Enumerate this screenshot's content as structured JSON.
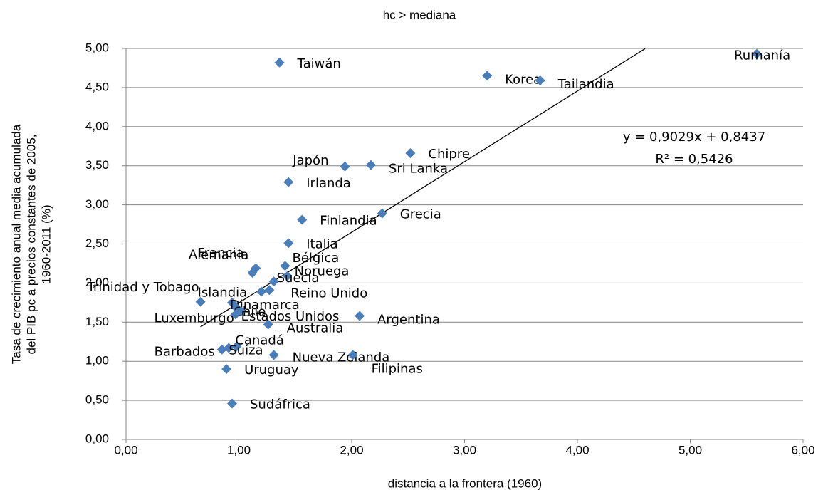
{
  "chart_data": {
    "type": "scatter",
    "title": "hc > mediana",
    "x_label": "distancia a la frontera (1960)",
    "y_label": [
      "Tasa de crecimiento anual media acumulada",
      "del PIB pc a precios constantes de 2005,",
      "1960-2011  (%)"
    ],
    "xlim": [
      0,
      6
    ],
    "ylim": [
      0,
      5
    ],
    "xticks": [
      {
        "value": 0,
        "label": "0,00"
      },
      {
        "value": 1,
        "label": "1,00"
      },
      {
        "value": 2,
        "label": "2,00"
      },
      {
        "value": 3,
        "label": "3,00"
      },
      {
        "value": 4,
        "label": "4,00"
      },
      {
        "value": 5,
        "label": "5,00"
      },
      {
        "value": 6,
        "label": "6,00"
      }
    ],
    "yticks": [
      {
        "value": 0,
        "label": "0,00"
      },
      {
        "value": 0.5,
        "label": "0,50"
      },
      {
        "value": 1,
        "label": "1,00"
      },
      {
        "value": 1.5,
        "label": "1,50"
      },
      {
        "value": 2,
        "label": "2,00"
      },
      {
        "value": 2.5,
        "label": "2,50"
      },
      {
        "value": 3,
        "label": "3,00"
      },
      {
        "value": 3.5,
        "label": "3,50"
      },
      {
        "value": 4,
        "label": "4,00"
      },
      {
        "value": 4.5,
        "label": "4,50"
      },
      {
        "value": 5,
        "label": "5,00"
      }
    ],
    "grid": true,
    "series": [
      {
        "color": "#4a7ebb",
        "point_labels": [
          "Taiwán",
          "Korea",
          "Tailandia",
          "Rumanía",
          "Chipre",
          "Japón",
          "Sri Lanka",
          "Irlanda",
          "Grecia",
          "Finlandia",
          "Italia",
          "Francia",
          "Bélgica",
          "Alemania",
          "Noruega",
          "Suecia",
          "Reino Unido",
          "Islandia",
          "Trinidad y Tobago",
          "Dinamarca",
          "Chile",
          "Luxemburgo",
          "Estados Unidos",
          "Australia",
          "Argentina",
          "Canadá",
          "Suiza",
          "Barbados",
          "Nueva Zelanda",
          "Filipinas",
          "Uruguay",
          "Sudáfrica"
        ],
        "x": [
          1.36,
          3.2,
          3.67,
          5.59,
          2.52,
          1.94,
          2.17,
          1.44,
          2.27,
          1.56,
          1.44,
          1.12,
          1.41,
          1.15,
          1.43,
          1.31,
          1.27,
          1.2,
          0.66,
          0.94,
          0.98,
          0.97,
          1.02,
          1.26,
          2.07,
          0.98,
          0.91,
          0.85,
          1.31,
          2.01,
          0.89,
          0.94
        ],
        "values": [
          4.82,
          4.65,
          4.59,
          4.93,
          3.66,
          3.49,
          3.51,
          3.29,
          2.89,
          2.81,
          2.51,
          2.13,
          2.22,
          2.19,
          2.09,
          2.02,
          1.91,
          1.89,
          1.76,
          1.75,
          1.68,
          1.6,
          1.64,
          1.47,
          1.58,
          1.19,
          1.17,
          1.15,
          1.08,
          1.08,
          0.9,
          0.46
        ]
      }
    ],
    "trendline": {
      "slope": 0.9029,
      "intercept": 0.8437,
      "xrange": [
        0.66,
        4.6
      ],
      "equation": "y = 0,9029x + 0,8437",
      "r2_label": "R² = 0,5426"
    }
  }
}
